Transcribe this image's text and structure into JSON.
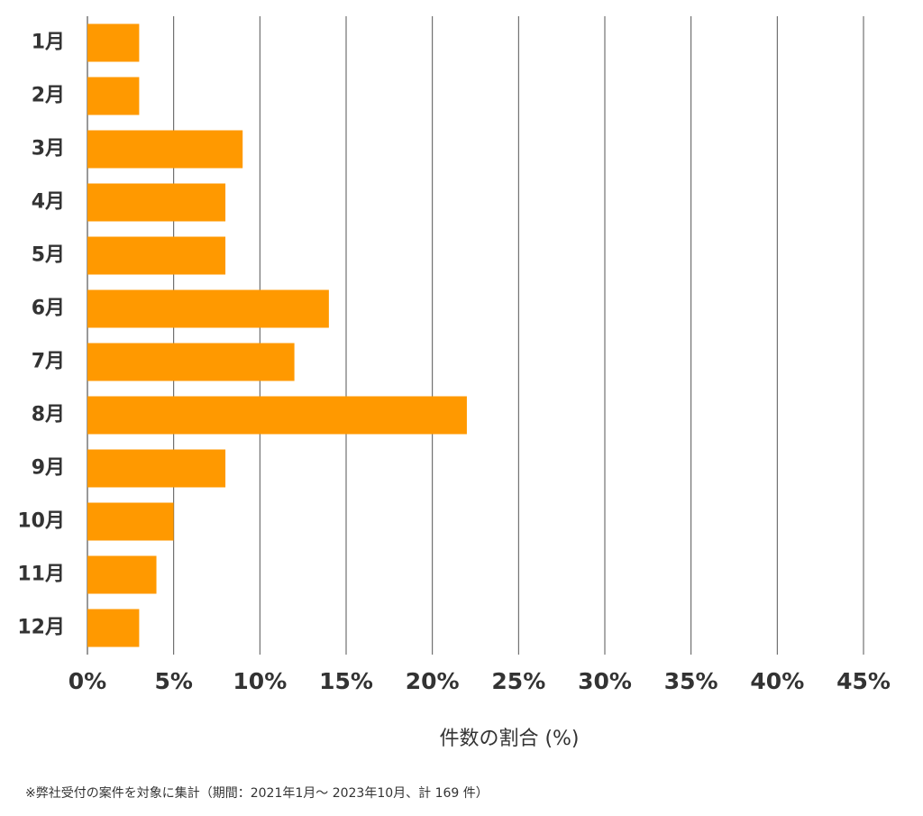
{
  "chart_data": {
    "type": "barh",
    "categories": [
      "1月",
      "2月",
      "3月",
      "4月",
      "5月",
      "6月",
      "7月",
      "8月",
      "9月",
      "10月",
      "11月",
      "12月"
    ],
    "values": [
      3.0,
      3.0,
      9.0,
      8.0,
      8.0,
      14.0,
      12.0,
      22.0,
      8.0,
      5.0,
      4.0,
      3.0
    ],
    "color": "#ff9900",
    "xlim": [
      0,
      45
    ],
    "xticks": [
      {
        "value": 0,
        "label": "0%"
      },
      {
        "value": 5,
        "label": "5%"
      },
      {
        "value": 10,
        "label": "10%"
      },
      {
        "value": 15,
        "label": "15%"
      },
      {
        "value": 20,
        "label": "20%"
      },
      {
        "value": 25,
        "label": "25%"
      },
      {
        "value": 30,
        "label": "30%"
      },
      {
        "value": 35,
        "label": "35%"
      },
      {
        "value": 40,
        "label": "40%"
      },
      {
        "value": 45,
        "label": "45%"
      }
    ],
    "grid": true,
    "xlabel": "件数の割合 (%)",
    "footnote": "※弊社受付の案件を対象に集計（期間：2021年1月～ 2023年10月、計 169 件）"
  }
}
